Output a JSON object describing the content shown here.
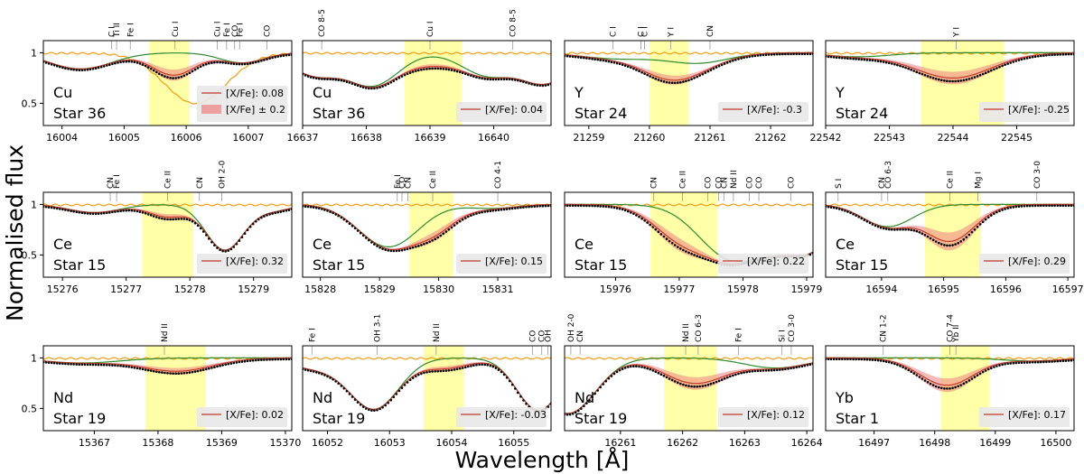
{
  "figure": {
    "xlabel": "Wavelength [Å]",
    "ylabel": "Normalised flux"
  },
  "chart_data": [
    {
      "type": "line",
      "element": "Cu",
      "star": "Star 36",
      "xlim": [
        16003.7,
        16007.7
      ],
      "ylim": [
        0.28,
        1.12
      ],
      "xticks": [
        16004,
        16005,
        16006,
        16007
      ],
      "yticks": [
        0.5,
        1.0
      ],
      "band": [
        16005.4,
        16006.05
      ],
      "center": 16005.8,
      "depth": 0.22,
      "width": 0.35,
      "bg": [
        [
          16004.3,
          0.16,
          0.5
        ],
        [
          16006.9,
          0.1,
          0.35
        ]
      ],
      "extraLines": [
        {
          "center": 16006.15,
          "depth": 0.5,
          "width": 0.5,
          "color": "#f39c12"
        }
      ],
      "legend": [
        "[X/Fe]: 0.08",
        "[X/Fe] ± 0.2"
      ],
      "linelabels": [
        {
          "label": "C I",
          "x": 16004.8
        },
        {
          "label": "Ti II",
          "x": 16004.88
        },
        {
          "label": "Fe I",
          "x": 16005.1
        },
        {
          "label": "Cu I",
          "x": 16005.82
        },
        {
          "label": "Cu I",
          "x": 16006.5
        },
        {
          "label": "Fe I",
          "x": 16006.65
        },
        {
          "label": "CO",
          "x": 16006.78
        },
        {
          "label": "Fe I",
          "x": 16006.86
        },
        {
          "label": "CO",
          "x": 16007.3
        }
      ]
    },
    {
      "type": "line",
      "element": "Cu",
      "star": "Star 36",
      "xlim": [
        16637,
        16640.9
      ],
      "ylim": [
        0.28,
        1.12
      ],
      "xticks": [
        16637,
        16638,
        16639,
        16640
      ],
      "yticks": [],
      "band": [
        16638.6,
        16639.5
      ],
      "center": 16639.0,
      "depth": 0.1,
      "width": 0.45,
      "bg": [
        [
          16637.2,
          0.22,
          0.4
        ],
        [
          16638.1,
          0.32,
          0.4
        ],
        [
          16639.9,
          0.22,
          0.4
        ],
        [
          16640.8,
          0.3,
          0.4
        ]
      ],
      "extraLines": [],
      "legend": [
        "[X/Fe]: 0.04"
      ],
      "linelabels": [
        {
          "label": "CO 8-5",
          "x": 16637.3
        },
        {
          "label": "Cu I",
          "x": 16639.0
        },
        {
          "label": "CO 8-5",
          "x": 16640.3
        }
      ]
    },
    {
      "type": "line",
      "element": "Y",
      "star": "Star 24",
      "xlim": [
        21258.6,
        21262.7
      ],
      "ylim": [
        0.28,
        1.12
      ],
      "xticks": [
        21259,
        21260,
        21261,
        21262
      ],
      "yticks": [],
      "band": [
        21260.0,
        21260.65
      ],
      "center": 21260.35,
      "depth": 0.2,
      "width": 0.45,
      "bg": [
        [
          21260.8,
          0.1,
          0.5
        ],
        [
          21259.5,
          0.06,
          0.6
        ]
      ],
      "extraLines": [],
      "legend": [
        "[X/Fe]: -0.3"
      ],
      "linelabels": [
        {
          "label": "C I",
          "x": 21259.4
        },
        {
          "label": "C I",
          "x": 21259.86
        },
        {
          "label": "C I",
          "x": 21259.92
        },
        {
          "label": "Y I",
          "x": 21260.35
        },
        {
          "label": "CN",
          "x": 21261.0
        }
      ]
    },
    {
      "type": "line",
      "element": "Y",
      "star": "Star 24",
      "xlim": [
        22542,
        22545.9
      ],
      "ylim": [
        0.28,
        1.12
      ],
      "xticks": [
        22542,
        22543,
        22544,
        22545
      ],
      "yticks": [],
      "band": [
        22543.5,
        22544.8
      ],
      "center": 22544.0,
      "depth": 0.25,
      "width": 0.6,
      "bg": [
        [
          22542.5,
          0.04,
          0.5
        ]
      ],
      "extraLines": [],
      "legend": [
        "[X/Fe]: -0.25"
      ],
      "linelabels": [
        {
          "label": "Y I",
          "x": 22544.05
        }
      ]
    },
    {
      "type": "line",
      "element": "Ce",
      "star": "Star 15",
      "xlim": [
        15275.7,
        15279.6
      ],
      "ylim": [
        0.28,
        1.12
      ],
      "xticks": [
        15276,
        15277,
        15278,
        15279
      ],
      "yticks": [
        0.5,
        1.0
      ],
      "band": [
        15277.25,
        15278.05
      ],
      "center": 15277.65,
      "depth": 0.12,
      "width": 0.3,
      "bg": [
        [
          15276.5,
          0.08,
          0.4
        ],
        [
          15278.55,
          0.45,
          0.3
        ],
        [
          15279.3,
          0.06,
          0.3
        ]
      ],
      "extraLines": [],
      "legend": [
        "[X/Fe]: 0.32"
      ],
      "linelabels": [
        {
          "label": "CN",
          "x": 15276.75
        },
        {
          "label": "Fe I",
          "x": 15276.85
        },
        {
          "label": "Ce II",
          "x": 15277.65
        },
        {
          "label": "CN",
          "x": 15278.15
        },
        {
          "label": "OH 2-0",
          "x": 15278.5
        }
      ]
    },
    {
      "type": "line",
      "element": "Ce",
      "star": "Star 15",
      "xlim": [
        15827.7,
        15831.9
      ],
      "ylim": [
        0.28,
        1.12
      ],
      "xticks": [
        15828,
        15829,
        15830,
        15831
      ],
      "yticks": [],
      "band": [
        15829.5,
        15830.25
      ],
      "center": 15829.9,
      "depth": 0.22,
      "width": 0.4,
      "bg": [
        [
          15829.15,
          0.42,
          0.5
        ],
        [
          15830.9,
          0.04,
          0.4
        ]
      ],
      "extraLines": [],
      "legend": [
        "[X/Fe]: 0.15"
      ],
      "linelabels": [
        {
          "label": "Fe I",
          "x": 15829.3
        },
        {
          "label": "CO",
          "x": 15829.38
        },
        {
          "label": "CN",
          "x": 15829.48
        },
        {
          "label": "Ce II",
          "x": 15829.9
        },
        {
          "label": "CO 4-1",
          "x": 15831.0
        }
      ]
    },
    {
      "type": "line",
      "element": "Ce",
      "star": "Star 15",
      "xlim": [
        15975.2,
        15979.1
      ],
      "ylim": [
        0.28,
        1.12
      ],
      "xticks": [
        15976,
        15977,
        15978,
        15979
      ],
      "yticks": [],
      "band": [
        15976.55,
        15977.6
      ],
      "center": 15977.05,
      "depth": 0.3,
      "width": 0.45,
      "bg": [
        [
          15977.8,
          0.5,
          0.5
        ],
        [
          15978.6,
          0.38,
          0.5
        ],
        [
          15979.1,
          0.3,
          0.3
        ]
      ],
      "extraLines": [],
      "legend": [
        "[X/Fe]: 0.22"
      ],
      "linelabels": [
        {
          "label": "CN",
          "x": 15976.6
        },
        {
          "label": "Ce II",
          "x": 15977.05
        },
        {
          "label": "CO",
          "x": 15977.45
        },
        {
          "label": "CO",
          "x": 15977.62
        },
        {
          "label": "CN",
          "x": 15977.7
        },
        {
          "label": "Nd II",
          "x": 15977.85
        },
        {
          "label": "CO",
          "x": 15978.1
        },
        {
          "label": "CO",
          "x": 15978.25
        },
        {
          "label": "CO",
          "x": 15978.75
        }
      ]
    },
    {
      "type": "line",
      "element": "Ce",
      "star": "Star 15",
      "xlim": [
        16593.1,
        16597.1
      ],
      "ylim": [
        0.28,
        1.12
      ],
      "xticks": [
        16594,
        16595,
        16596,
        16597
      ],
      "yticks": [],
      "band": [
        16594.7,
        16595.6
      ],
      "center": 16595.1,
      "depth": 0.36,
      "width": 0.4,
      "bg": [
        [
          16594.1,
          0.22,
          0.4
        ]
      ],
      "extraLines": [],
      "legend": [
        "[X/Fe]: 0.29"
      ],
      "linelabels": [
        {
          "label": "S I",
          "x": 16593.3
        },
        {
          "label": "CN",
          "x": 16594.0
        },
        {
          "label": "CO 6-3",
          "x": 16594.1
        },
        {
          "label": "Ce II",
          "x": 16595.1
        },
        {
          "label": "Mg I",
          "x": 16595.55
        },
        {
          "label": "CO 3-0",
          "x": 16596.5
        }
      ]
    },
    {
      "type": "line",
      "element": "Nd",
      "star": "Star 19",
      "xlim": [
        15366.2,
        15370.1
      ],
      "ylim": [
        0.28,
        1.12
      ],
      "xticks": [
        15367,
        15368,
        15369,
        15370
      ],
      "yticks": [
        0.5,
        1.0
      ],
      "band": [
        15367.8,
        15368.75
      ],
      "center": 15368.3,
      "depth": 0.13,
      "width": 0.55,
      "bg": [
        [
          15366.8,
          0.05,
          0.6
        ]
      ],
      "extraLines": [],
      "legend": [
        "[X/Fe]: 0.02"
      ],
      "linelabels": [
        {
          "label": "Nd II",
          "x": 15368.1
        }
      ]
    },
    {
      "type": "line",
      "element": "Nd",
      "star": "Star 19",
      "xlim": [
        16051.6,
        16055.6
      ],
      "ylim": [
        0.28,
        1.12
      ],
      "xticks": [
        16052,
        16053,
        16054,
        16055
      ],
      "yticks": [],
      "band": [
        16053.55,
        16054.2
      ],
      "center": 16053.9,
      "depth": 0.1,
      "width": 0.4,
      "bg": [
        [
          16052.75,
          0.5,
          0.4
        ],
        [
          16055.4,
          0.52,
          0.35
        ],
        [
          16051.8,
          0.1,
          0.5
        ]
      ],
      "extraLines": [],
      "legend": [
        "[X/Fe]: -0.03"
      ],
      "linelabels": [
        {
          "label": "Fe I",
          "x": 16051.75
        },
        {
          "label": "OH 3-1",
          "x": 16052.8
        },
        {
          "label": "Nd II",
          "x": 16053.75
        },
        {
          "label": "CO",
          "x": 16055.3
        },
        {
          "label": "CO",
          "x": 16055.45
        },
        {
          "label": "OH",
          "x": 16055.55
        }
      ]
    },
    {
      "type": "line",
      "element": "Nd",
      "star": "Star 19",
      "xlim": [
        16260.1,
        16264.1
      ],
      "ylim": [
        0.28,
        1.12
      ],
      "xticks": [
        16261,
        16262,
        16263,
        16264
      ],
      "yticks": [],
      "band": [
        16261.7,
        16262.55
      ],
      "center": 16262.2,
      "depth": 0.25,
      "width": 0.5,
      "bg": [
        [
          16260.15,
          0.55,
          0.45
        ],
        [
          16263.5,
          0.1,
          0.5
        ]
      ],
      "extraLines": [],
      "legend": [
        "[X/Fe]: 0.12"
      ],
      "linelabels": [
        {
          "label": "OH 2-0",
          "x": 16260.2
        },
        {
          "label": "CN",
          "x": 16260.35
        },
        {
          "label": "Nd II",
          "x": 16262.05
        },
        {
          "label": "CO 6-3",
          "x": 16262.25
        },
        {
          "label": "Fe I",
          "x": 16262.9
        },
        {
          "label": "Si I",
          "x": 16263.6
        },
        {
          "label": "CO 3-0",
          "x": 16263.75
        }
      ]
    },
    {
      "type": "line",
      "element": "Yb",
      "star": "Star 1",
      "xlim": [
        16496.2,
        16500.3
      ],
      "ylim": [
        0.28,
        1.12
      ],
      "xticks": [
        16497,
        16498,
        16499,
        16500
      ],
      "yticks": [],
      "band": [
        16498.1,
        16498.9
      ],
      "center": 16498.2,
      "depth": 0.27,
      "width": 0.45,
      "bg": [
        [
          16499.6,
          0.03,
          0.5
        ]
      ],
      "extraLines": [],
      "legend": [
        "[X/Fe]: 0.17"
      ],
      "linelabels": [
        {
          "label": "CN 1-2",
          "x": 16497.15
        },
        {
          "label": "CO 7-4",
          "x": 16498.25
        },
        {
          "label": "Yb II",
          "x": 16498.35
        }
      ]
    }
  ]
}
